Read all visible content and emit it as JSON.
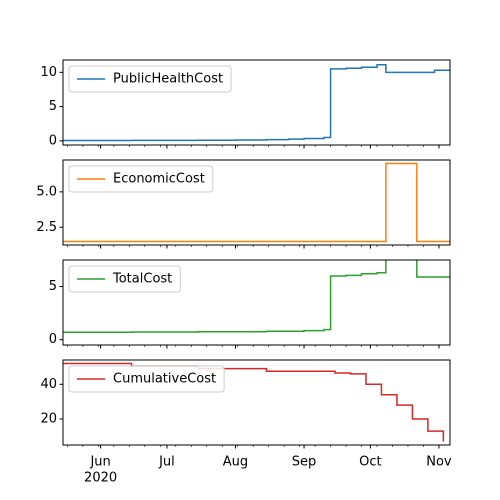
{
  "chart_data": [
    {
      "type": "line",
      "step": true,
      "series": [
        {
          "name": "PublicHealthCost",
          "color": "#1f77b4"
        }
      ],
      "ylim": [
        -0.6,
        11.8
      ],
      "yticks": [
        0,
        5,
        10
      ],
      "ytick_labels": [
        "0",
        "5",
        "10"
      ],
      "x": [
        "2020-05-15",
        "2020-05-30",
        "2020-06-15",
        "2020-07-01",
        "2020-07-15",
        "2020-08-01",
        "2020-08-15",
        "2020-08-25",
        "2020-09-01",
        "2020-09-10",
        "2020-09-13",
        "2020-09-20",
        "2020-09-27",
        "2020-10-04",
        "2020-10-08",
        "2020-10-16",
        "2020-10-23",
        "2020-10-30",
        "2020-11-06"
      ],
      "y": [
        0.05,
        0.06,
        0.07,
        0.08,
        0.1,
        0.13,
        0.18,
        0.25,
        0.35,
        0.5,
        10.5,
        10.6,
        10.75,
        11.1,
        10.0,
        10.0,
        10.0,
        10.3,
        10.3
      ]
    },
    {
      "type": "line",
      "step": true,
      "series": [
        {
          "name": "EconomicCost",
          "color": "#ff7f0e"
        }
      ],
      "ylim": [
        1.25,
        7.25
      ],
      "yticks": [
        2.5,
        5.0
      ],
      "ytick_labels": [
        "2.5",
        "5.0"
      ],
      "x": [
        "2020-05-15",
        "2020-10-08",
        "2020-10-22",
        "2020-11-06"
      ],
      "y": [
        1.5,
        7.0,
        1.5,
        1.5
      ]
    },
    {
      "type": "line",
      "step": true,
      "series": [
        {
          "name": "TotalCost",
          "color": "#2ca02c"
        }
      ],
      "ylim": [
        -0.5,
        7.5
      ],
      "yticks": [
        0,
        5
      ],
      "ytick_labels": [
        "0",
        "5"
      ],
      "x": [
        "2020-05-15",
        "2020-06-15",
        "2020-07-15",
        "2020-08-15",
        "2020-09-01",
        "2020-09-10",
        "2020-09-13",
        "2020-09-20",
        "2020-09-27",
        "2020-10-04",
        "2020-10-08",
        "2020-10-22",
        "2020-11-06"
      ],
      "y": [
        0.7,
        0.72,
        0.75,
        0.8,
        0.85,
        0.95,
        6.0,
        6.05,
        6.2,
        6.3,
        7.8,
        5.9,
        5.9
      ]
    },
    {
      "type": "line",
      "step": true,
      "series": [
        {
          "name": "CumulativeCost",
          "color": "#d62728"
        }
      ],
      "ylim": [
        5,
        54
      ],
      "yticks": [
        20,
        40
      ],
      "ytick_labels": [
        "20",
        "40"
      ],
      "x": [
        "2020-05-15",
        "2020-06-15",
        "2020-07-15",
        "2020-08-15",
        "2020-09-15",
        "2020-09-22",
        "2020-09-29",
        "2020-10-06",
        "2020-10-13",
        "2020-10-20",
        "2020-10-27",
        "2020-11-03"
      ],
      "y": [
        52,
        50.5,
        49,
        47.5,
        46.5,
        46,
        40,
        34,
        28,
        20,
        13,
        7
      ]
    }
  ],
  "x_axis": {
    "range": [
      "2020-05-15",
      "2020-11-06"
    ],
    "ticks": [
      {
        "date": "2020-06-01",
        "label": "Jun"
      },
      {
        "date": "2020-07-01",
        "label": "Jul"
      },
      {
        "date": "2020-08-01",
        "label": "Aug"
      },
      {
        "date": "2020-09-01",
        "label": "Sep"
      },
      {
        "date": "2020-10-01",
        "label": "Oct"
      },
      {
        "date": "2020-11-01",
        "label": "Nov"
      }
    ],
    "year_label": "2020"
  }
}
